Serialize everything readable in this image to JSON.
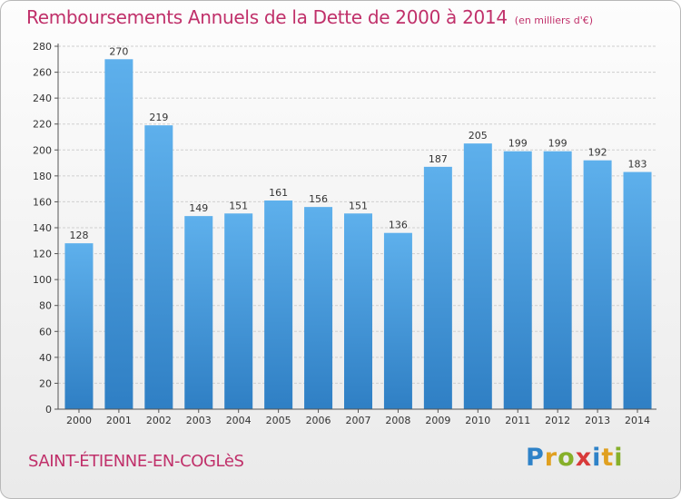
{
  "title": "Remboursements Annuels de la Dette de 2000 à 2014",
  "unit_label": "(en milliers d'€)",
  "commune": "SAINT-ÉTIENNE-EN-COGLèS",
  "logo": "Proxiti",
  "colors": {
    "title": "#c0306a",
    "bar_light": "#5eb0ec",
    "bar_dark": "#2f7fc4",
    "grid": "#cfcfcf"
  },
  "chart_data": {
    "type": "bar",
    "title": "Remboursements Annuels de la Dette de 2000 à 2014",
    "xlabel": "",
    "ylabel": "",
    "ylim": [
      0,
      280
    ],
    "yticks": [
      0,
      20,
      40,
      60,
      80,
      100,
      120,
      140,
      160,
      180,
      200,
      220,
      240,
      260,
      280
    ],
    "grid": true,
    "categories": [
      "2000",
      "2001",
      "2002",
      "2003",
      "2004",
      "2005",
      "2006",
      "2007",
      "2008",
      "2009",
      "2010",
      "2011",
      "2012",
      "2013",
      "2014"
    ],
    "values": [
      128,
      270,
      219,
      149,
      151,
      161,
      156,
      151,
      136,
      187,
      205,
      199,
      199,
      192,
      183
    ]
  }
}
